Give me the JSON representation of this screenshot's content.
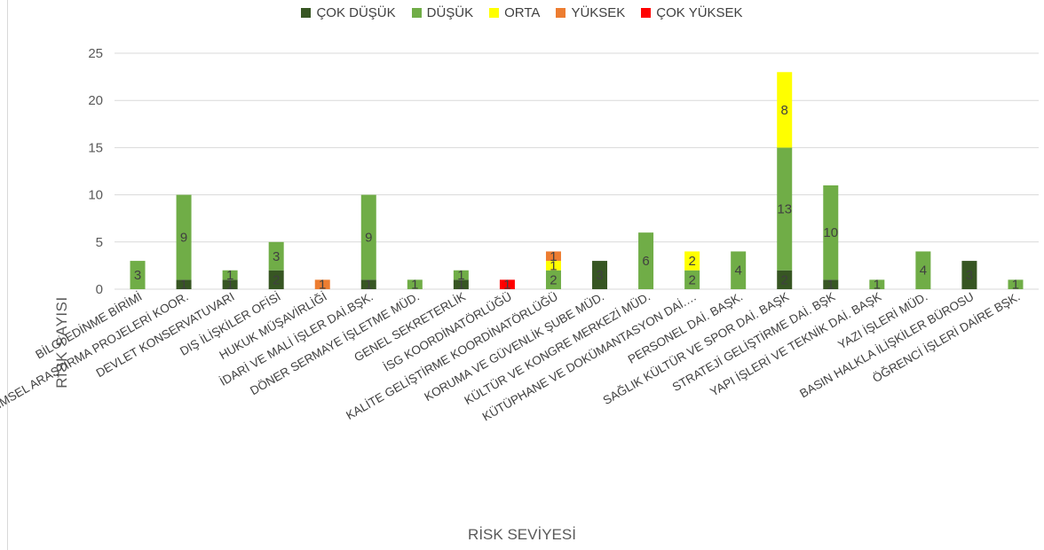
{
  "chart_data": {
    "type": "bar",
    "stacked": true,
    "xlabel": "RİSK SEVİYESİ",
    "ylabel": "RİSK SAYISI",
    "ylim": [
      0,
      25
    ],
    "yticks": [
      0,
      5,
      10,
      15,
      20,
      25
    ],
    "grid": true,
    "legend_position": "top",
    "categories": [
      "BİLGİ EDİNME BİRİMİ",
      "BİLİMSEL ARAŞTIRMA PROJELERİ KOOR.",
      "DEVLET KONSERVATUVARI",
      "DIŞ İLİŞKİLER OFİSİ",
      "HUKUK MÜŞAVİRLİĞİ",
      "İDARİ VE MALİ İŞLER DAİ.BŞK.",
      "DÖNER SERMAYE İŞLETME MÜD.",
      "GENEL SEKRETERLİK",
      "İSG KOORDİNATÖRLÜĞÜ",
      "KALİTE GELİŞTİRME KOORDİNATÖRLÜĞÜ",
      "KORUMA VE GÜVENLİK ŞUBE MÜD.",
      "KÜLTÜR VE KONGRE MERKEZİ MÜD.",
      "KÜTÜPHANE VE DOKÜMANTASYON DAİ.…",
      "PERSONEL DAİ. BAŞK.",
      "SAĞLIK KÜLTÜR VE SPOR DAİ. BAŞK",
      "STRATEJİ GELİŞTİRME DAİ. BŞK",
      "YAPI İŞLERİ VE TEKNİK DAİ. BAŞK",
      "YAZI İŞLERİ MÜD.",
      "BASIN HALKLA İLİŞKİLER BÜROSU",
      "ÖĞRENCİ İŞLERİ DAİRE BŞK."
    ],
    "series": [
      {
        "name": "ÇOK DÜŞÜK",
        "color": "#375623",
        "values": [
          0,
          1,
          1,
          2,
          0,
          1,
          0,
          1,
          0,
          0,
          3,
          0,
          0,
          0,
          2,
          1,
          0,
          0,
          3,
          0
        ]
      },
      {
        "name": "DÜŞÜK",
        "color": "#70AD47",
        "values": [
          3,
          9,
          1,
          3,
          0,
          9,
          1,
          1,
          0,
          2,
          0,
          6,
          2,
          4,
          13,
          10,
          1,
          4,
          0,
          1
        ]
      },
      {
        "name": "ORTA",
        "color": "#FFFF00",
        "values": [
          0,
          0,
          0,
          0,
          0,
          0,
          0,
          0,
          0,
          1,
          0,
          0,
          2,
          0,
          8,
          0,
          0,
          0,
          0,
          0
        ]
      },
      {
        "name": "YÜKSEK",
        "color": "#ED7D31",
        "values": [
          0,
          0,
          0,
          0,
          1,
          0,
          0,
          0,
          0,
          1,
          0,
          0,
          0,
          0,
          0,
          0,
          0,
          0,
          0,
          0
        ]
      },
      {
        "name": "ÇOK YÜKSEK",
        "color": "#FF0000",
        "values": [
          0,
          0,
          0,
          0,
          0,
          0,
          0,
          0,
          1,
          0,
          0,
          0,
          0,
          0,
          0,
          0,
          0,
          0,
          0,
          0
        ]
      }
    ]
  }
}
